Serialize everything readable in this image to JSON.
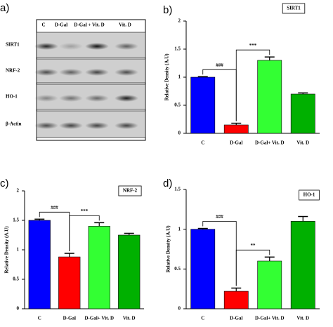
{
  "blot": {
    "panel": "a)",
    "lanes": [
      "C",
      "D-Gal",
      "D-Gal + Vit. D",
      "Vit. D"
    ],
    "rows": [
      "SIRT1",
      "NRF-2",
      "HO-1",
      "β-Actin"
    ]
  },
  "chart_data": [
    {
      "type": "bar",
      "panel": "b)",
      "title": "SIRT1",
      "ylabel": "Relative Density (A.U)",
      "categories": [
        "C",
        "D-Gal",
        "D-Gal+ Vit. D",
        "Vit. D"
      ],
      "values": [
        1.0,
        0.15,
        1.3,
        0.7
      ],
      "errors": [
        0.01,
        0.03,
        0.06,
        0.02
      ],
      "colors": [
        "#0000ff",
        "#ff0000",
        "#33ff33",
        "#00b000"
      ],
      "annotations": [
        "###",
        "***"
      ],
      "ylim": [
        0,
        2
      ],
      "yticks": [
        0,
        0.5,
        1,
        1.5,
        2
      ]
    },
    {
      "type": "bar",
      "panel": "c)",
      "title": "NRF-2",
      "ylabel": "Relative Density (A.U)",
      "categories": [
        "C",
        "D-Gal",
        "D-Gal+ Vit. D",
        "Vit. D"
      ],
      "values": [
        1.5,
        0.88,
        1.4,
        1.25
      ],
      "errors": [
        0.02,
        0.06,
        0.06,
        0.03
      ],
      "colors": [
        "#0000ff",
        "#ff0000",
        "#33ff33",
        "#00b000"
      ],
      "annotations": [
        "###",
        "***"
      ],
      "ylim": [
        0,
        2
      ],
      "yticks": [
        0,
        0.5,
        1,
        1.5,
        2
      ]
    },
    {
      "type": "bar",
      "panel": "d)",
      "title": "HO-1",
      "ylabel": "Relative Density (A.U)",
      "categories": [
        "C",
        "D-Gal",
        "D-Gal+ Vit. D",
        "Vit. D"
      ],
      "values": [
        1.0,
        0.22,
        0.6,
        1.1
      ],
      "errors": [
        0.01,
        0.04,
        0.05,
        0.06
      ],
      "colors": [
        "#0000ff",
        "#ff0000",
        "#33ff33",
        "#00b000"
      ],
      "annotations": [
        "###",
        "**"
      ],
      "ylim": [
        0,
        1.5
      ],
      "yticks": [
        0,
        0.5,
        1,
        1.5
      ]
    }
  ]
}
